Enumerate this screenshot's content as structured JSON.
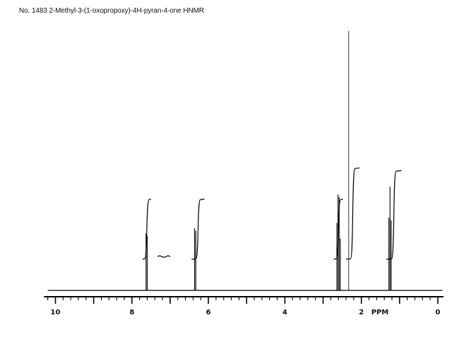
{
  "title": "No. 1483  2-Methyl-3-(1-oxopropoxy)-4H-pyran-4-one HNMR",
  "chart_data": {
    "type": "line",
    "title": "No. 1483  2-Methyl-3-(1-oxopropoxy)-4H-pyran-4-one HNMR",
    "xlabel": "PPM",
    "ylabel": "",
    "x_reversed": true,
    "xlim": [
      10.3,
      -0.15
    ],
    "ylim": [
      0,
      1
    ],
    "grid": false,
    "x_tick_labels": [
      {
        "value": 10,
        "label": "10"
      },
      {
        "value": 8,
        "label": "8"
      },
      {
        "value": 6,
        "label": "6"
      },
      {
        "value": 4,
        "label": "4"
      },
      {
        "value": 2,
        "label": "2"
      },
      {
        "value": 0,
        "label": "0"
      }
    ],
    "axis_unit_label": "PPM",
    "peaks": [
      {
        "ppm": 7.63,
        "height": 0.22
      },
      {
        "ppm": 7.6,
        "height": 0.21
      },
      {
        "ppm": 6.36,
        "height": 0.24
      },
      {
        "ppm": 6.33,
        "height": 0.23
      },
      {
        "ppm": 2.64,
        "height": 0.26
      },
      {
        "ppm": 2.61,
        "height": 0.37
      },
      {
        "ppm": 2.58,
        "height": 0.36
      },
      {
        "ppm": 2.55,
        "height": 0.2
      },
      {
        "ppm": 2.33,
        "height": 1.0
      },
      {
        "ppm": 1.28,
        "height": 0.28
      },
      {
        "ppm": 1.25,
        "height": 0.4
      },
      {
        "ppm": 1.22,
        "height": 0.27
      }
    ],
    "integrals": [
      {
        "start": 7.72,
        "end": 7.5,
        "rise": 0.23
      },
      {
        "start": 7.33,
        "end": 7.06,
        "rise": 0.01
      },
      {
        "start": 6.44,
        "end": 6.1,
        "rise": 0.23
      },
      {
        "start": 2.72,
        "end": 2.48,
        "rise": 0.23
      },
      {
        "start": 2.4,
        "end": 2.05,
        "rise": 0.35
      },
      {
        "start": 1.35,
        "end": 0.95,
        "rise": 0.34
      }
    ]
  }
}
